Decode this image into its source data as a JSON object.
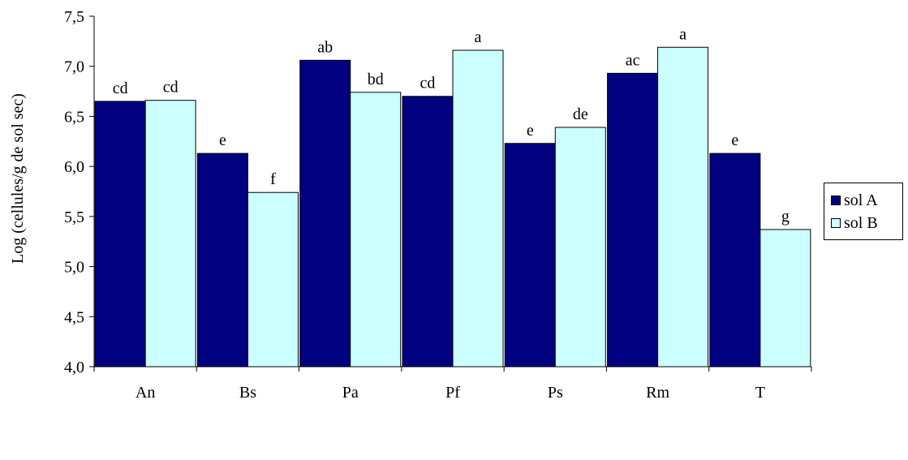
{
  "chart_data": {
    "type": "bar",
    "title": "",
    "xlabel": "",
    "ylabel": "Log (cellules/g de sol sec)",
    "ylim": [
      4.0,
      7.5
    ],
    "yticks": [
      "4,0",
      "4,5",
      "5,0",
      "5,5",
      "6,0",
      "6,5",
      "7,0",
      "7,5"
    ],
    "categories": [
      "An",
      "Bs",
      "Pa",
      "Pf",
      "Ps",
      "Rm",
      "T"
    ],
    "series": [
      {
        "name": "sol A",
        "color": "#000080",
        "values": [
          6.65,
          6.13,
          7.06,
          6.7,
          6.23,
          6.93,
          6.13
        ],
        "labels": [
          "cd",
          "e",
          "ab",
          "cd",
          "e",
          "ac",
          "e"
        ]
      },
      {
        "name": "sol B",
        "color": "#CCFFFF",
        "values": [
          6.66,
          5.74,
          6.74,
          7.16,
          6.39,
          7.19,
          5.37
        ],
        "labels": [
          "cd",
          "f",
          "bd",
          "a",
          "de",
          "a",
          "g"
        ]
      }
    ],
    "grid": false,
    "legend_position": "right"
  }
}
